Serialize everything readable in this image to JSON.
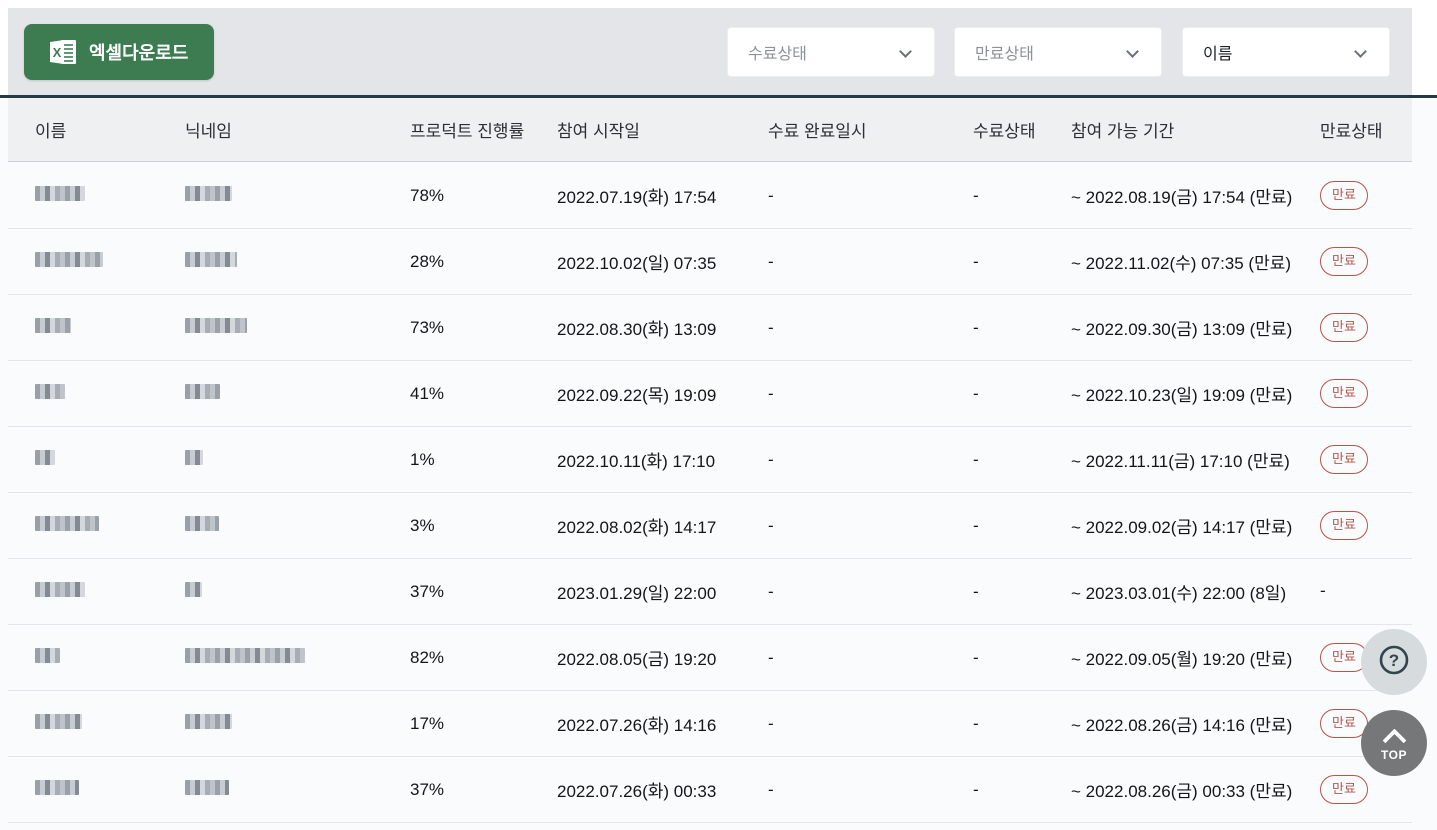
{
  "toolbar": {
    "excel_button_label": "엑셀다운로드"
  },
  "filters": [
    {
      "label": "수료상태",
      "state": "placeholder"
    },
    {
      "label": "만료상태",
      "state": "placeholder"
    },
    {
      "label": "이름",
      "state": "selected"
    }
  ],
  "table": {
    "columns": [
      "이름",
      "닉네임",
      "프로덕트 진행률",
      "참여 시작일",
      "수료 완료일시",
      "수료상태",
      "참여 가능 기간",
      "만료상태"
    ],
    "rows": [
      {
        "progress": "78%",
        "start_date": "2022.07.19(화) 17:54",
        "completed_at": "-",
        "completion_status": "-",
        "available_period": "~ 2022.08.19(금) 17:54 (만료)",
        "expiry_status": "만료",
        "name_blur_width": 50,
        "nickname_blur_width": 47
      },
      {
        "progress": "28%",
        "start_date": "2022.10.02(일) 07:35",
        "completed_at": "-",
        "completion_status": "-",
        "available_period": "~ 2022.11.02(수) 07:35 (만료)",
        "expiry_status": "만료",
        "name_blur_width": 68,
        "nickname_blur_width": 52
      },
      {
        "progress": "73%",
        "start_date": "2022.08.30(화) 13:09",
        "completed_at": "-",
        "completion_status": "-",
        "available_period": "~ 2022.09.30(금) 13:09 (만료)",
        "expiry_status": "만료",
        "name_blur_width": 36,
        "nickname_blur_width": 62
      },
      {
        "progress": "41%",
        "start_date": "2022.09.22(목) 19:09",
        "completed_at": "-",
        "completion_status": "-",
        "available_period": "~ 2022.10.23(일) 19:09 (만료)",
        "expiry_status": "만료",
        "name_blur_width": 30,
        "nickname_blur_width": 35
      },
      {
        "progress": "1%",
        "start_date": "2022.10.11(화) 17:10",
        "completed_at": "-",
        "completion_status": "-",
        "available_period": "~ 2022.11.11(금) 17:10 (만료)",
        "expiry_status": "만료",
        "name_blur_width": 20,
        "nickname_blur_width": 18
      },
      {
        "progress": "3%",
        "start_date": "2022.08.02(화) 14:17",
        "completed_at": "-",
        "completion_status": "-",
        "available_period": "~ 2022.09.02(금) 14:17 (만료)",
        "expiry_status": "만료",
        "name_blur_width": 64,
        "nickname_blur_width": 34
      },
      {
        "progress": "37%",
        "start_date": "2023.01.29(일) 22:00",
        "completed_at": "-",
        "completion_status": "-",
        "available_period": "~ 2023.03.01(수) 22:00 (8일)",
        "expiry_status": "-",
        "name_blur_width": 50,
        "nickname_blur_width": 17
      },
      {
        "progress": "82%",
        "start_date": "2022.08.05(금) 19:20",
        "completed_at": "-",
        "completion_status": "-",
        "available_period": "~ 2022.09.05(월) 19:20 (만료)",
        "expiry_status": "만료",
        "name_blur_width": 25,
        "nickname_blur_width": 120
      },
      {
        "progress": "17%",
        "start_date": "2022.07.26(화) 14:16",
        "completed_at": "-",
        "completion_status": "-",
        "available_period": "~ 2022.08.26(금) 14:16 (만료)",
        "expiry_status": "만료",
        "name_blur_width": 47,
        "nickname_blur_width": 47
      },
      {
        "progress": "37%",
        "start_date": "2022.07.26(화) 00:33",
        "completed_at": "-",
        "completion_status": "-",
        "available_period": "~ 2022.08.26(금) 00:33 (만료)",
        "expiry_status": "만료",
        "name_blur_width": 44,
        "nickname_blur_width": 44
      }
    ]
  },
  "floating": {
    "top_label": "TOP"
  },
  "colors": {
    "accent_green": "#3d7b50",
    "badge_red": "#b5554b",
    "divider_dark": "#253845",
    "toolbar_bg": "#e3e5e8"
  }
}
